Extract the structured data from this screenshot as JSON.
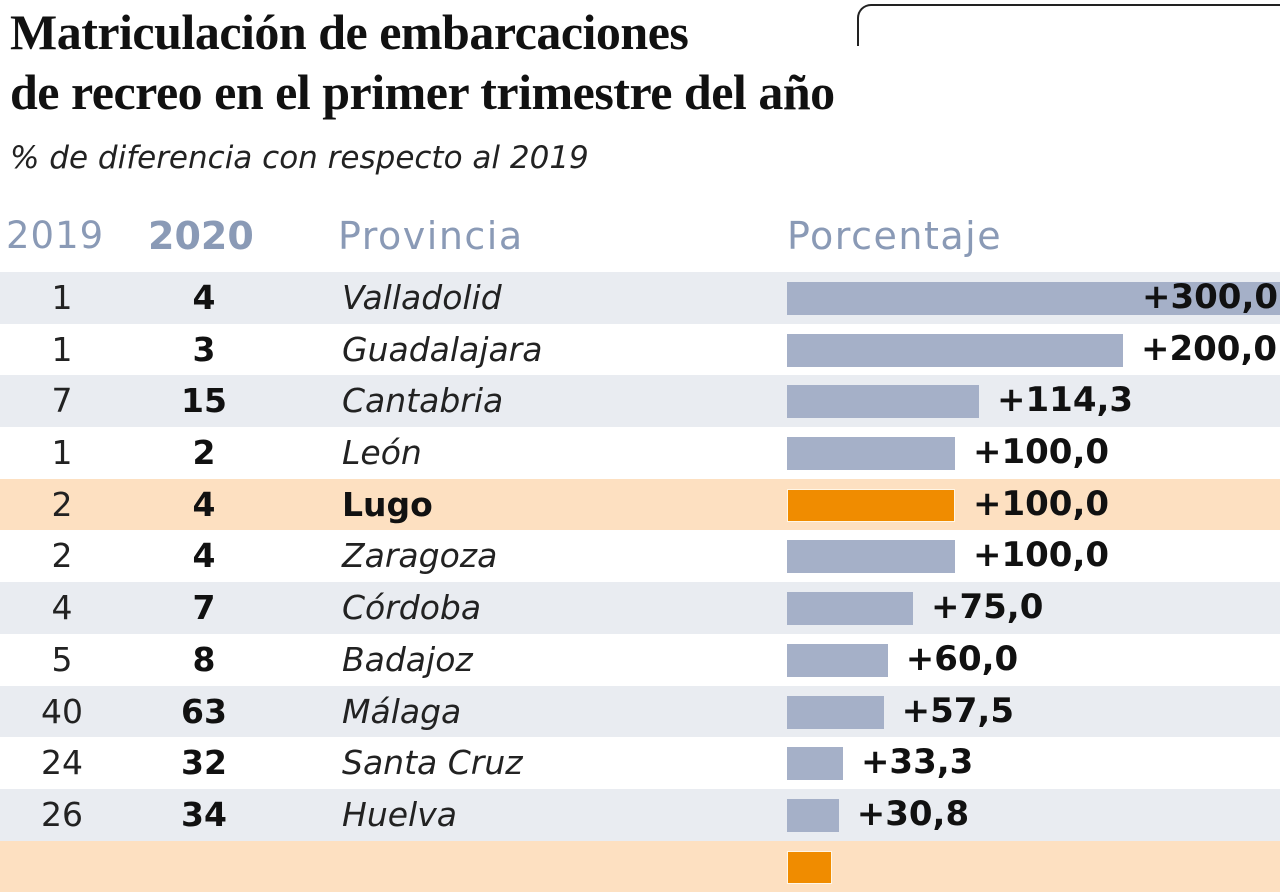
{
  "title_line1": "Matriculación de embarcaciones",
  "title_line2": "de recreo en el primer trimestre del año",
  "subtitle": "% de diferencia con respecto al 2019",
  "headers": {
    "col_2019": "2019",
    "col_2020": "2020",
    "col_provincia": "Provincia",
    "col_porcentaje": "Porcentaje"
  },
  "colors": {
    "bar_default": "#a5b0c8",
    "bar_highlight": "#f08c00",
    "row_alt": "#e9ecf1",
    "row_highlight": "#fde0c1",
    "header_text": "#8a9ab6"
  },
  "chart_data": {
    "type": "bar",
    "orientation": "horizontal",
    "title": "Matriculación de embarcaciones de recreo en el primer trimestre del año",
    "subtitle": "% de diferencia con respecto al 2019",
    "xlabel": "Porcentaje",
    "ylabel": "Provincia",
    "highlight": "Lugo",
    "categories": [
      "Valladolid",
      "Guadalajara",
      "Cantabria",
      "León",
      "Lugo",
      "Zaragoza",
      "Córdoba",
      "Badajoz",
      "Málaga",
      "Santa Cruz",
      "Huelva"
    ],
    "series": [
      {
        "name": "2019",
        "values": [
          1,
          1,
          7,
          1,
          2,
          2,
          4,
          5,
          40,
          24,
          26
        ]
      },
      {
        "name": "2020",
        "values": [
          4,
          3,
          15,
          2,
          4,
          4,
          7,
          8,
          63,
          32,
          34
        ]
      },
      {
        "name": "Porcentaje",
        "values": [
          300.0,
          200.0,
          114.3,
          100.0,
          100.0,
          100.0,
          75.0,
          60.0,
          57.5,
          33.3,
          30.8
        ]
      }
    ],
    "labels": [
      "+300,0",
      "+200,0",
      "+114,3",
      "+100,0",
      "+100,0",
      "+100,0",
      "+75,0",
      "+60,0",
      "+57,5",
      "+33,3",
      "+30,8"
    ],
    "xlim": [
      0,
      300
    ],
    "grid": false
  },
  "rows": [
    {
      "y2019": "1",
      "y2020": "4",
      "provincia": "Valladolid",
      "pct": 300.0,
      "label": "+300,0",
      "highlight": false
    },
    {
      "y2019": "1",
      "y2020": "3",
      "provincia": "Guadalajara",
      "pct": 200.0,
      "label": "+200,0",
      "highlight": false
    },
    {
      "y2019": "7",
      "y2020": "15",
      "provincia": "Cantabria",
      "pct": 114.3,
      "label": "+114,3",
      "highlight": false
    },
    {
      "y2019": "1",
      "y2020": "2",
      "provincia": "León",
      "pct": 100.0,
      "label": "+100,0",
      "highlight": false
    },
    {
      "y2019": "2",
      "y2020": "4",
      "provincia": "Lugo",
      "pct": 100.0,
      "label": "+100,0",
      "highlight": true
    },
    {
      "y2019": "2",
      "y2020": "4",
      "provincia": "Zaragoza",
      "pct": 100.0,
      "label": "+100,0",
      "highlight": false
    },
    {
      "y2019": "4",
      "y2020": "7",
      "provincia": "Córdoba",
      "pct": 75.0,
      "label": "+75,0",
      "highlight": false
    },
    {
      "y2019": "5",
      "y2020": "8",
      "provincia": "Badajoz",
      "pct": 60.0,
      "label": "+60,0",
      "highlight": false
    },
    {
      "y2019": "40",
      "y2020": "63",
      "provincia": "Málaga",
      "pct": 57.5,
      "label": "+57,5",
      "highlight": false
    },
    {
      "y2019": "24",
      "y2020": "32",
      "provincia": "Santa Cruz",
      "pct": 33.3,
      "label": "+33,3",
      "highlight": false
    },
    {
      "y2019": "26",
      "y2020": "34",
      "provincia": "Huelva",
      "pct": 30.8,
      "label": "+30,8",
      "highlight": false
    }
  ]
}
